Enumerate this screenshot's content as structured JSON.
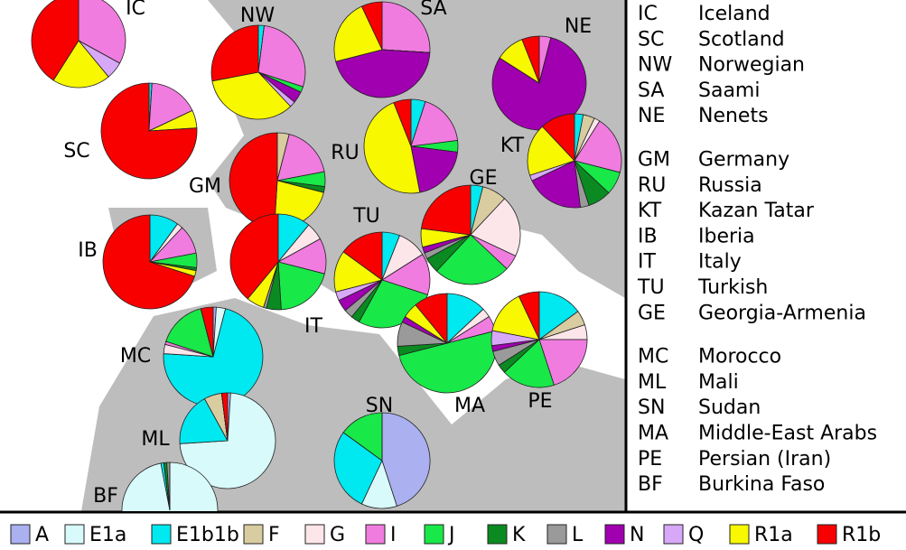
{
  "regions": [
    {
      "code": "IC",
      "name": "Iceland",
      "values": [
        0,
        0,
        0,
        0,
        0,
        33,
        0,
        0,
        0,
        0,
        6,
        20,
        41
      ]
    },
    {
      "code": "SC",
      "name": "Scotland",
      "values": [
        0,
        0,
        1,
        0,
        0,
        17,
        0,
        0,
        0,
        0,
        0,
        6,
        76
      ]
    },
    {
      "code": "NW",
      "name": "Norwegian",
      "values": [
        0,
        0,
        2,
        0,
        0,
        28,
        2,
        0,
        0,
        4,
        2,
        34,
        28
      ]
    },
    {
      "code": "SA",
      "name": "Saami",
      "values": [
        0,
        0,
        0,
        0,
        0,
        26,
        0,
        0,
        0,
        45,
        0,
        22,
        7
      ]
    },
    {
      "code": "NE",
      "name": "Nenets",
      "values": [
        0,
        0,
        0,
        0,
        0,
        4,
        0,
        0,
        0,
        80,
        0,
        10,
        6
      ]
    },
    {
      "code": "GM",
      "name": "Germany",
      "values": [
        0,
        0,
        0,
        4,
        0,
        18,
        5,
        2,
        0,
        0,
        0,
        22,
        49
      ]
    },
    {
      "code": "RU",
      "name": "Russia",
      "values": [
        0,
        0,
        5,
        0,
        0,
        18,
        4,
        0,
        0,
        20,
        0,
        47,
        6
      ]
    },
    {
      "code": "KT",
      "name": "Kazan Tatar",
      "values": [
        0,
        0,
        3,
        4,
        2,
        20,
        8,
        8,
        3,
        20,
        2,
        18,
        12
      ]
    },
    {
      "code": "IB",
      "name": "Iberia",
      "values": [
        0,
        0,
        10,
        0,
        2,
        10,
        5,
        1,
        0,
        0,
        0,
        2,
        70
      ]
    },
    {
      "code": "IT",
      "name": "Italy",
      "values": [
        0,
        0,
        11,
        0,
        6,
        12,
        20,
        5,
        1,
        0,
        0,
        6,
        39
      ]
    },
    {
      "code": "TU",
      "name": "Turkish",
      "values": [
        0,
        0,
        6,
        0,
        10,
        14,
        28,
        3,
        3,
        4,
        3,
        14,
        15
      ]
    },
    {
      "code": "GE",
      "name": "Georgia-Armenia",
      "values": [
        0,
        0,
        4,
        8,
        20,
        5,
        25,
        5,
        2,
        2,
        0,
        6,
        23
      ]
    },
    {
      "code": "MC",
      "name": "Morocco",
      "values": [
        1,
        3,
        72,
        0,
        3,
        1,
        16,
        0,
        0,
        0,
        0,
        0,
        4
      ]
    },
    {
      "code": "ML",
      "name": "Mali",
      "values": [
        1,
        73,
        18,
        6,
        0,
        0,
        0,
        0,
        0,
        0,
        0,
        0,
        2
      ]
    },
    {
      "code": "SN",
      "name": "Sudan",
      "values": [
        45,
        12,
        28,
        0,
        0,
        0,
        15,
        0,
        0,
        0,
        0,
        0,
        0
      ]
    },
    {
      "code": "MA",
      "name": "Middle-East Arabs",
      "values": [
        0,
        0,
        13,
        0,
        3,
        5,
        50,
        3,
        8,
        2,
        0,
        5,
        11
      ]
    },
    {
      "code": "PE",
      "name": "Persian (Iran)",
      "values": [
        0,
        0,
        15,
        5,
        5,
        20,
        18,
        3,
        5,
        2,
        5,
        15,
        7
      ]
    },
    {
      "code": "BF",
      "name": "Burkina Faso",
      "values": [
        0,
        97,
        1,
        0,
        0,
        0,
        0,
        1,
        1,
        0,
        0,
        0,
        0
      ]
    }
  ],
  "haplogroups": [
    {
      "name": "A",
      "color": "#aab0f0"
    },
    {
      "name": "E1a",
      "color": "#d8fafa"
    },
    {
      "name": "E1b1b",
      "color": "#00e8f0"
    },
    {
      "name": "F",
      "color": "#d8cca0"
    },
    {
      "name": "G",
      "color": "#fce6ea"
    },
    {
      "name": "I",
      "color": "#f07ce0"
    },
    {
      "name": "J",
      "color": "#18e848"
    },
    {
      "name": "K",
      "color": "#0a8a20"
    },
    {
      "name": "L",
      "color": "#9a9a9a"
    },
    {
      "name": "N",
      "color": "#a000b0"
    },
    {
      "name": "Q",
      "color": "#d8a8f8"
    },
    {
      "name": "R1a",
      "color": "#f8f800"
    },
    {
      "name": "R1b",
      "color": "#f80000"
    }
  ]
}
